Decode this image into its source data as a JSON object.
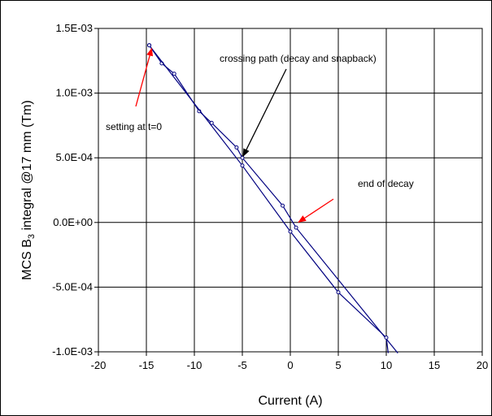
{
  "chart_data": {
    "type": "line",
    "xlabel": "Current (A)",
    "ylabel_prefix": "MCS B",
    "ylabel_sub": "3",
    "ylabel_suffix": " integral @17 mm (Tm)",
    "xlim": [
      -20,
      20
    ],
    "ylim": [
      -0.001,
      0.0015
    ],
    "xticks": [
      -20,
      -15,
      -10,
      -5,
      0,
      5,
      10,
      15,
      20
    ],
    "xtick_labels": [
      "-20",
      "-15",
      "-10",
      "-5",
      "0",
      "5",
      "10",
      "15",
      "20"
    ],
    "yticks": [
      -0.001,
      -0.0005,
      0,
      0.0005,
      0.001,
      0.0015
    ],
    "ytick_labels": [
      "-1.0E-03",
      "-5.0E-04",
      "0.0E+00",
      "5.0E-04",
      "1.0E-03",
      "1.5E-03"
    ],
    "grid": true,
    "series": [
      {
        "color": "#000080",
        "points": [
          [
            -14.7,
            0.00137
          ],
          [
            -13.4,
            0.00123
          ],
          [
            -12.1,
            0.00115
          ],
          [
            -9.5,
            0.00086
          ],
          [
            -8.2,
            0.00077
          ],
          [
            -5.6,
            0.00058
          ],
          [
            -5.0,
            0.0005
          ],
          [
            -0.8,
            0.00013
          ],
          [
            0.6,
            -4e-05
          ],
          [
            11.2,
            -0.00101
          ]
        ]
      },
      {
        "color": "#000080",
        "points": [
          [
            -14.7,
            0.00137
          ],
          [
            -5.0,
            0.00044
          ],
          [
            0.0,
            -7e-05
          ],
          [
            5.0,
            -0.00054
          ],
          [
            10.0,
            -0.00089
          ],
          [
            10.2,
            -0.00101
          ]
        ]
      }
    ],
    "annotations": [
      {
        "text": "crossing path (decay and snapback)",
        "color": "#000000",
        "arrow_target": [
          -5.0,
          0.0005
        ]
      },
      {
        "text": "setting at t=0",
        "color": "#ff0000",
        "arrow_target": [
          -14.7,
          0.00137
        ]
      },
      {
        "text": "end of decay",
        "color": "#ff0000",
        "arrow_target": [
          0.6,
          -1e-05
        ]
      }
    ]
  }
}
